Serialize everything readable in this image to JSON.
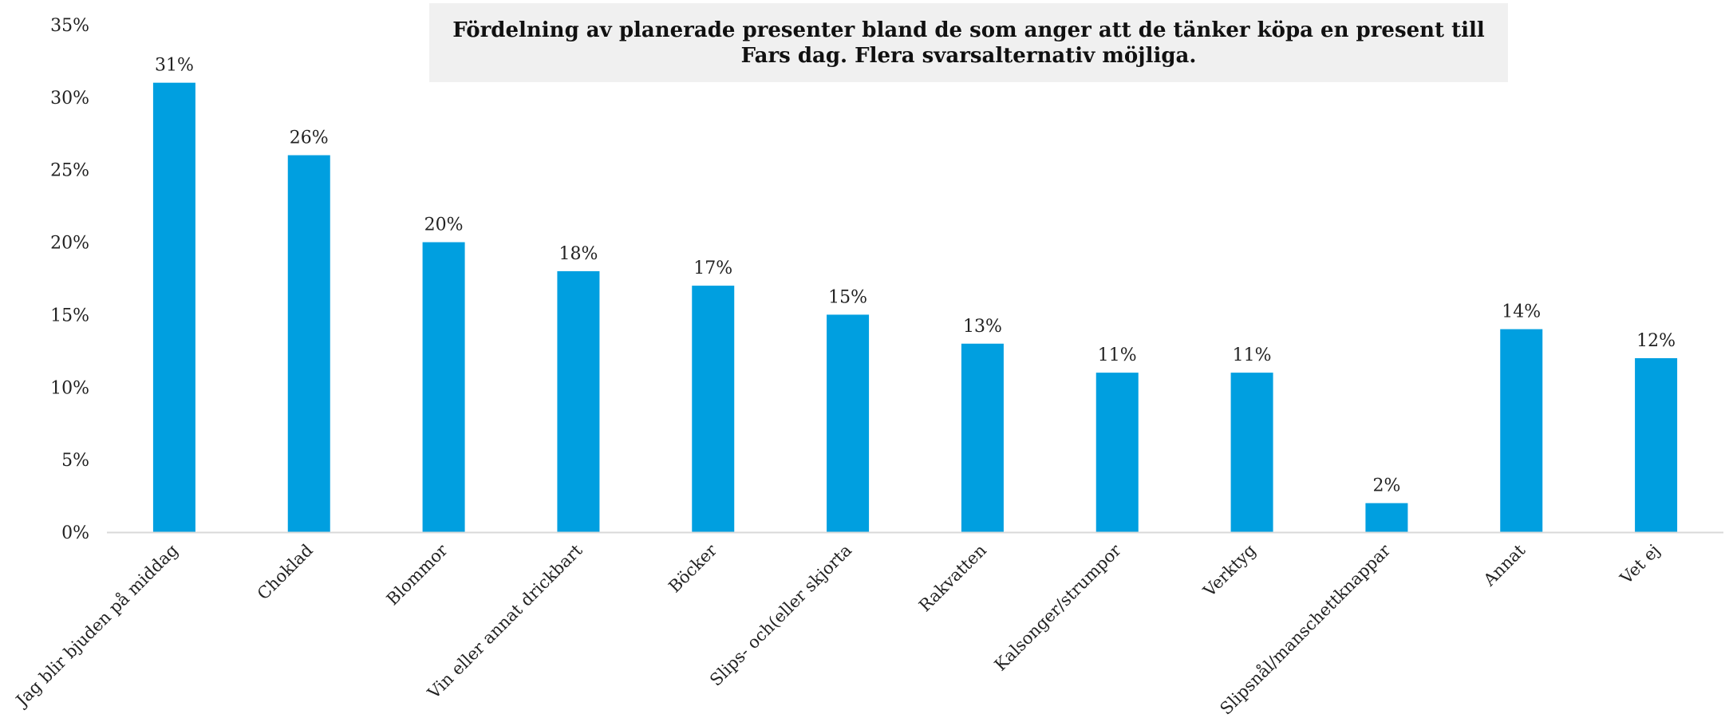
{
  "chart_data": {
    "type": "bar",
    "title": "Fördelning av planerade presenter bland de som anger att de tänker köpa en present till Fars dag. Flera svarsalternativ möjliga.",
    "categories": [
      "Jag blir bjuden på middag",
      "Choklad",
      "Blommor",
      "Vin eller annat drickbart",
      "Böcker",
      "Slips- och(eller skjorta",
      "Rakvatten",
      "Kalsonger/strumpor",
      "Verktyg",
      "Slipsnål/manschettknappar",
      "Annat",
      "Vet ej"
    ],
    "values": [
      31,
      26,
      20,
      18,
      17,
      15,
      13,
      11,
      11,
      2,
      14,
      12
    ],
    "value_labels": [
      "31%",
      "26%",
      "20%",
      "18%",
      "17%",
      "15%",
      "13%",
      "11%",
      "11%",
      "2%",
      "14%",
      "12%"
    ],
    "ylim": [
      0,
      35
    ],
    "y_ticks": [
      "0%",
      "5%",
      "10%",
      "15%",
      "20%",
      "25%",
      "30%",
      "35%"
    ],
    "xlabel": "",
    "ylabel": "",
    "grid": false,
    "legend": "none",
    "bar_color": "#009fe0"
  }
}
